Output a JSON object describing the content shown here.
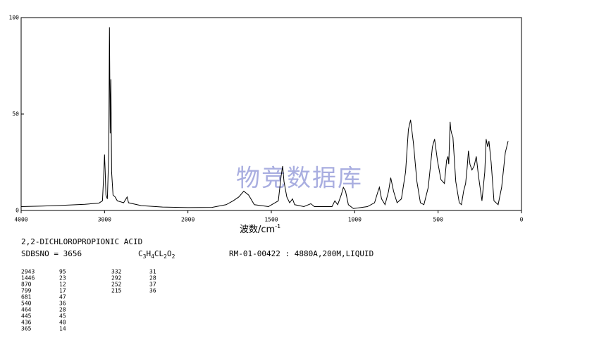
{
  "chart_data": {
    "type": "line",
    "color": "#000000",
    "xlim": [
      4000,
      0
    ],
    "xticks": [
      4000,
      3000,
      2000,
      1500,
      1000,
      500,
      0
    ],
    "ylim": [
      0,
      100
    ],
    "yticks": [
      0,
      50,
      100
    ],
    "xlabel": {
      "text": "波数/cm",
      "sup": "-1"
    },
    "watermark": "物竞数据库",
    "x": [
      4000,
      3746,
      3492,
      3237,
      3068,
      3025,
      3008,
      3000,
      2992,
      2983,
      2966,
      2949,
      2941,
      2932,
      2924,
      2915,
      2898,
      2873,
      2847,
      2771,
      2729,
      2712,
      2559,
      2305,
      2000,
      1856,
      1771,
      1729,
      1695,
      1665,
      1636,
      1602,
      1517,
      1458,
      1441,
      1432,
      1424,
      1407,
      1390,
      1373,
      1360,
      1305,
      1263,
      1242,
      1136,
      1119,
      1102,
      1081,
      1068,
      1055,
      1038,
      1008,
      924,
      881,
      860,
      852,
      839,
      818,
      797,
      784,
      767,
      746,
      720,
      695,
      678,
      665,
      648,
      627,
      606,
      585,
      559,
      534,
      521,
      504,
      483,
      462,
      449,
      441,
      436,
      428,
      424,
      419,
      411,
      394,
      373,
      360,
      347,
      335,
      326,
      318,
      309,
      297,
      284,
      271,
      258,
      237,
      220,
      212,
      203,
      195,
      182,
      165,
      140,
      119,
      97,
      80
    ],
    "values": [
      2,
      2.3,
      2.7,
      3.2,
      3.8,
      5,
      20,
      29,
      20,
      8,
      6,
      30,
      95,
      40,
      68,
      20,
      8,
      7,
      5,
      4,
      7,
      4,
      2.5,
      1.8,
      1.5,
      1.6,
      3,
      5,
      7,
      10,
      8,
      3,
      2,
      5,
      18,
      23,
      15,
      7,
      4,
      6,
      3,
      2,
      3.5,
      2,
      2,
      5,
      3,
      8,
      12,
      10,
      3,
      1,
      2,
      4,
      10,
      12,
      6,
      3,
      10,
      17,
      10,
      4,
      6,
      20,
      42,
      47,
      35,
      15,
      4,
      3,
      12,
      33,
      37,
      26,
      16,
      14,
      26,
      28,
      24,
      46,
      42,
      40,
      38,
      15,
      4,
      3,
      10,
      14,
      22,
      31,
      24,
      21,
      23,
      28,
      18,
      5,
      20,
      37,
      33,
      36,
      25,
      5,
      3,
      12,
      30,
      36
    ],
    "compound": "2,2-DICHLOROPROPIONIC ACID",
    "sdbs_no": "SDBSNO = 3656",
    "formula": "C3H4CL2O2",
    "conditions": "RM-01-00422 : 4880A,200M,LIQUID",
    "peaks": [
      [
        2943,
        95
      ],
      [
        1446,
        23
      ],
      [
        870,
        12
      ],
      [
        799,
        17
      ],
      [
        681,
        47
      ],
      [
        540,
        36
      ],
      [
        464,
        28
      ],
      [
        445,
        45
      ],
      [
        436,
        40
      ],
      [
        365,
        14
      ],
      [
        332,
        31
      ],
      [
        292,
        28
      ],
      [
        252,
        37
      ],
      [
        215,
        36
      ]
    ]
  }
}
